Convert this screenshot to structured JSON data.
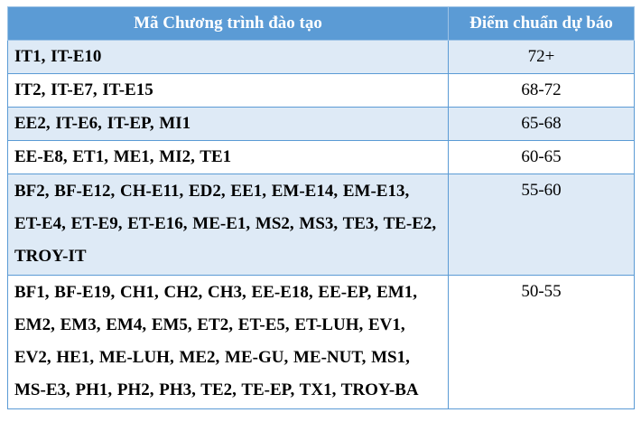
{
  "table": {
    "header": {
      "program_code": "Mã Chương trình đào tạo",
      "predicted_score": "Điểm chuẩn dự báo"
    },
    "rows": [
      {
        "codes": "IT1, IT-E10",
        "score": "72+"
      },
      {
        "codes": "IT2, IT-E7, IT-E15",
        "score": "68-72"
      },
      {
        "codes": "EE2, IT-E6, IT-EP, MI1",
        "score": "65-68"
      },
      {
        "codes": "EE-E8, ET1, ME1, MI2, TE1",
        "score": "60-65"
      },
      {
        "codes": "BF2, BF-E12, CH-E11, ED2, EE1, EM-E14, EM-E13, ET-E4, ET-E9, ET-E16, ME-E1, MS2, MS3, TE3, TE-E2, TROY-IT",
        "score": "55-60"
      },
      {
        "codes": "BF1, BF-E19, CH1, CH2, CH3, EE-E18, EE-EP, EM1, EM2, EM3, EM4, EM5, ET2, ET-E5, ET-LUH, EV1, EV2, HE1, ME-LUH, ME2, ME-GU, ME-NUT, MS1, MS-E3, PH1, PH2, PH3, TE2, TE-EP, TX1, TROY-BA",
        "score": "50-55"
      }
    ]
  },
  "colors": {
    "header_bg": "#5b9bd5",
    "header_text": "#ffffff",
    "shaded_row_bg": "#deeaf6",
    "border": "#5b9bd5"
  }
}
